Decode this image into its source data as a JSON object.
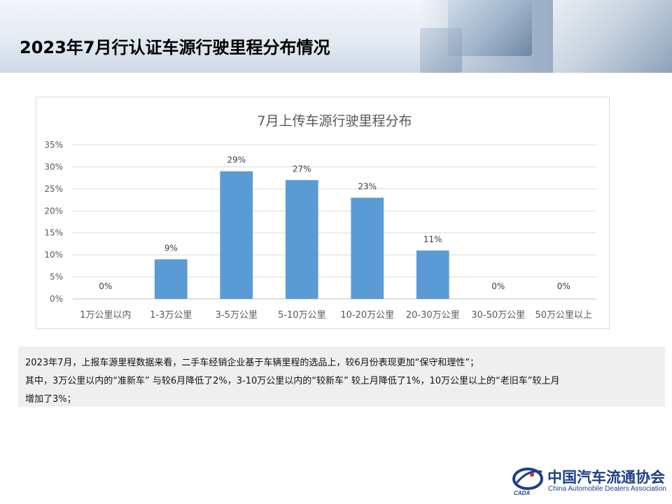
{
  "page": {
    "title": "2023年7月行认证车源行驶里程分布情况"
  },
  "chart_data": {
    "type": "bar",
    "title": "7月上传车源行驶里程分布",
    "categories": [
      "1万公里以内",
      "1-3万公里",
      "3-5万公里",
      "5-10万公里",
      "10-20万公里",
      "20-30万公里",
      "30-50万公里",
      "50万公里以上"
    ],
    "values": [
      0,
      9,
      29,
      27,
      23,
      11,
      0,
      0
    ],
    "value_labels": [
      "0%",
      "9%",
      "29%",
      "27%",
      "23%",
      "11%",
      "0%",
      "0%"
    ],
    "y_ticks": [
      "0%",
      "5%",
      "10%",
      "15%",
      "20%",
      "25%",
      "30%",
      "35%"
    ],
    "ylim": [
      0,
      35
    ],
    "grid": true,
    "bar_color": "#5b9bd5"
  },
  "notes": [
    "2023年7月，上报车源里程数据来看，二手车经销企业基于车辆里程的选品上，较6月份表现更加“保守和理性”；",
    "其中，3万公里以内的“准新车” 与较6月降低了2%，3-10万公里以内的“较新车” 较上月降低了1%，10万公里以上的“老旧车”较上月",
    "增加了3%；"
  ],
  "logo": {
    "name_cn": "中国汽车流通协会",
    "name_en": "China Automobile Dealers Association",
    "mark_text": "CADA"
  }
}
